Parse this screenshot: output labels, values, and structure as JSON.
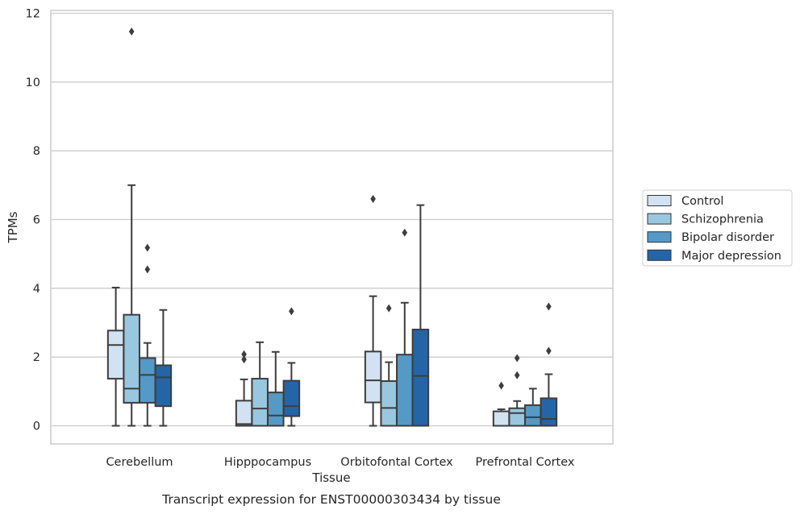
{
  "chart_data": {
    "type": "box",
    "title": "",
    "caption": "Transcript expression for ENST00000303434 by tissue",
    "xlabel": "Tissue",
    "ylabel": "TPMs",
    "ylim": [
      -0.55,
      12.2
    ],
    "yticks": [
      0,
      2,
      4,
      6,
      8,
      10,
      12
    ],
    "grid": "horizontal",
    "legend_position": "right",
    "categories": [
      "Cerebellum",
      "Hipppocampus",
      "Orbitofontal Cortex",
      "Prefrontal Cortex"
    ],
    "series": [
      {
        "name": "Control",
        "color": "#d1e2f2",
        "boxes": [
          {
            "whislo": 0.0,
            "q1": 1.37,
            "med": 2.35,
            "q3": 2.77,
            "whishi": 4.02,
            "fliers": []
          },
          {
            "whislo": 0.0,
            "q1": 0.0,
            "med": 0.05,
            "q3": 0.73,
            "whishi": 1.35,
            "fliers": [
              1.93,
              2.08
            ]
          },
          {
            "whislo": 0.0,
            "q1": 0.68,
            "med": 1.32,
            "q3": 2.16,
            "whishi": 3.77,
            "fliers": [
              6.6
            ]
          },
          {
            "whislo": 0.0,
            "q1": 0.0,
            "med": 0.0,
            "q3": 0.42,
            "whishi": 0.48,
            "fliers": [
              1.17
            ]
          }
        ]
      },
      {
        "name": "Schizophrenia",
        "color": "#9ac7e0",
        "boxes": [
          {
            "whislo": 0.0,
            "q1": 0.67,
            "med": 1.08,
            "q3": 3.23,
            "whishi": 7.0,
            "fliers": [
              11.47
            ]
          },
          {
            "whislo": 0.0,
            "q1": 0.0,
            "med": 0.5,
            "q3": 1.37,
            "whishi": 2.43,
            "fliers": []
          },
          {
            "whislo": 0.0,
            "q1": 0.0,
            "med": 0.52,
            "q3": 1.3,
            "whishi": 1.85,
            "fliers": [
              3.42
            ]
          },
          {
            "whislo": 0.0,
            "q1": 0.0,
            "med": 0.37,
            "q3": 0.51,
            "whishi": 0.72,
            "fliers": [
              1.47,
              1.97
            ]
          }
        ]
      },
      {
        "name": "Bipolar disorder",
        "color": "#5599c7",
        "boxes": [
          {
            "whislo": 0.0,
            "q1": 0.67,
            "med": 1.48,
            "q3": 1.97,
            "whishi": 2.41,
            "fliers": [
              4.55,
              5.18
            ]
          },
          {
            "whislo": 0.0,
            "q1": 0.0,
            "med": 0.3,
            "q3": 0.97,
            "whishi": 2.15,
            "fliers": []
          },
          {
            "whislo": 0.0,
            "q1": 0.0,
            "med": 0.0,
            "q3": 2.07,
            "whishi": 3.58,
            "fliers": [
              5.62
            ]
          },
          {
            "whislo": 0.0,
            "q1": 0.0,
            "med": 0.25,
            "q3": 0.6,
            "whishi": 1.08,
            "fliers": []
          }
        ]
      },
      {
        "name": "Major depression",
        "color": "#2465a8",
        "boxes": [
          {
            "whislo": 0.0,
            "q1": 0.57,
            "med": 1.41,
            "q3": 1.76,
            "whishi": 3.37,
            "fliers": []
          },
          {
            "whislo": 0.0,
            "q1": 0.28,
            "med": 0.57,
            "q3": 1.31,
            "whishi": 1.83,
            "fliers": [
              3.33
            ]
          },
          {
            "whislo": 0.0,
            "q1": 0.0,
            "med": 1.45,
            "q3": 2.8,
            "whishi": 6.42,
            "fliers": []
          },
          {
            "whislo": 0.0,
            "q1": 0.0,
            "med": 0.2,
            "q3": 0.8,
            "whishi": 1.5,
            "fliers": [
              2.18,
              3.47
            ]
          }
        ]
      }
    ]
  }
}
